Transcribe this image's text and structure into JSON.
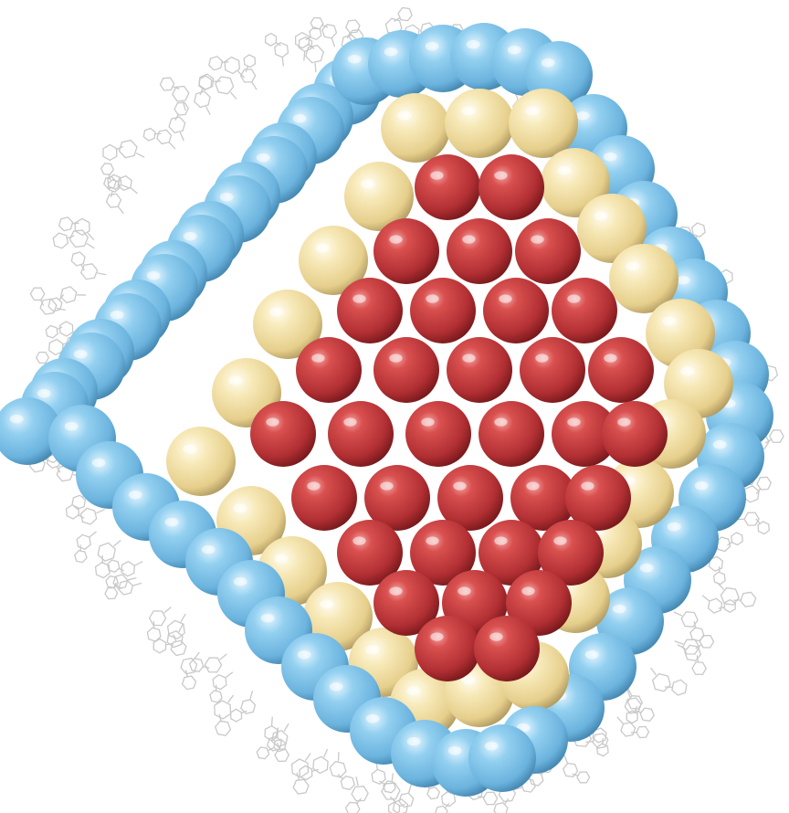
{
  "image": {
    "subject": "nanocluster-ball-model",
    "layers": [
      {
        "name": "core",
        "color": "#c8393c"
      },
      {
        "name": "middle-shell",
        "color": "#f3e2a6"
      },
      {
        "name": "outer-shell",
        "color": "#7cc3e8"
      }
    ],
    "ligand_color": "#c9c9c9",
    "background": "#ffffff"
  }
}
